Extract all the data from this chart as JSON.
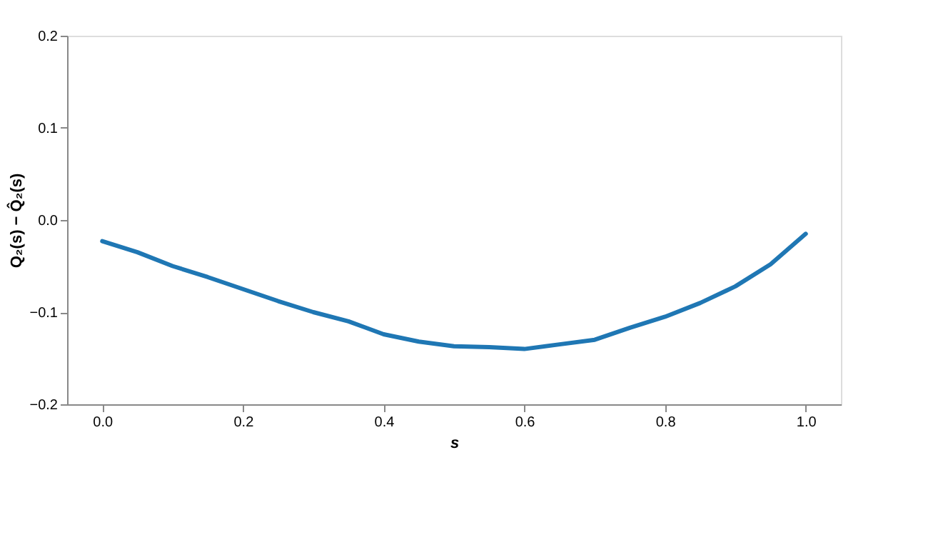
{
  "chart_data": {
    "type": "line",
    "xlabel": "s",
    "ylabel": "Q₂(s) − Q̂₂(s)",
    "x": [
      0,
      0.05,
      0.1,
      0.15,
      0.2,
      0.25,
      0.3,
      0.35,
      0.4,
      0.45,
      0.5,
      0.55,
      0.6,
      0.65,
      0.7,
      0.75,
      0.8,
      0.85,
      0.9,
      0.95,
      1.0
    ],
    "series": [
      {
        "color": "#1f77b4",
        "values": [
          -0.023,
          -0.035,
          -0.05,
          -0.062,
          -0.075,
          -0.088,
          -0.1,
          -0.11,
          -0.124,
          -0.132,
          -0.137,
          -0.138,
          -0.14,
          -0.135,
          -0.13,
          -0.117,
          -0.105,
          -0.09,
          -0.072,
          -0.048,
          -0.015
        ]
      }
    ],
    "xlim": [
      -0.05,
      1.05
    ],
    "xticks": [
      {
        "value": 0,
        "label": "0.0"
      },
      {
        "value": 0.2,
        "label": "0.2"
      },
      {
        "value": 0.4,
        "label": "0.4"
      },
      {
        "value": 0.6,
        "label": "0.6"
      },
      {
        "value": 0.8,
        "label": "0.8"
      },
      {
        "value": 1.0,
        "label": "1.0"
      }
    ],
    "ylim": [
      -0.2,
      0.2
    ],
    "yticks": [
      {
        "value": -0.2,
        "label": "−0.2"
      },
      {
        "value": -0.1,
        "label": "−0.1"
      },
      {
        "value": 0,
        "label": "0.0"
      },
      {
        "value": 0.1,
        "label": "0.1"
      },
      {
        "value": 0.2,
        "label": "0.2"
      }
    ],
    "grid": false,
    "line_style": "solid",
    "marker": "none"
  }
}
